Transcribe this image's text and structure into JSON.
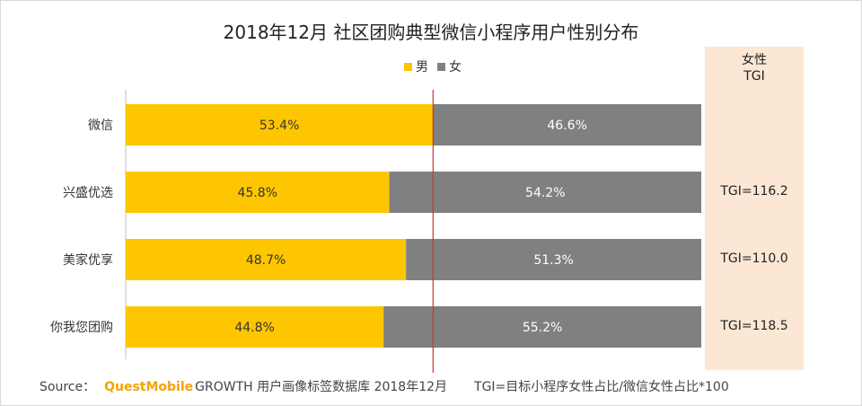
{
  "title": "2018年12月 社区团购典型微信小程序用户性别分布",
  "legend": [
    {
      "label": "男",
      "color": "#fec601"
    },
    {
      "label": "女",
      "color": "#808080"
    }
  ],
  "tgi_header": {
    "line1": "女性",
    "line2": "TGI"
  },
  "tgi_values": [
    "",
    "TGI=116.2",
    "TGI=110.0",
    "TGI=118.5"
  ],
  "footer": {
    "source": "Source：",
    "brand": "QuestMobile",
    "dataset": "GROWTH 用户画像标签数据库 2018年12月",
    "note": "TGI=目标小程序女性占比/微信女性占比*100"
  },
  "colors": {
    "male": "#fec601",
    "female": "#808080",
    "reference_line": "#c0392b",
    "tgi_panel": "#fbe7d4"
  },
  "chart_data": {
    "type": "bar",
    "orientation": "horizontal",
    "stacked": true,
    "categories": [
      "微信",
      "兴盛优选",
      "美家优享",
      "你我您团购"
    ],
    "series": [
      {
        "name": "男",
        "values": [
          53.4,
          45.8,
          48.7,
          44.8
        ],
        "labels": [
          "53.4%",
          "45.8%",
          "48.7%",
          "44.8%"
        ]
      },
      {
        "name": "女",
        "values": [
          46.6,
          54.2,
          51.3,
          55.2
        ],
        "labels": [
          "46.6%",
          "54.2%",
          "51.3%",
          "55.2%"
        ]
      }
    ],
    "xlim": [
      0,
      100
    ],
    "reference_line": 53.4,
    "legend_position": "top-center"
  }
}
